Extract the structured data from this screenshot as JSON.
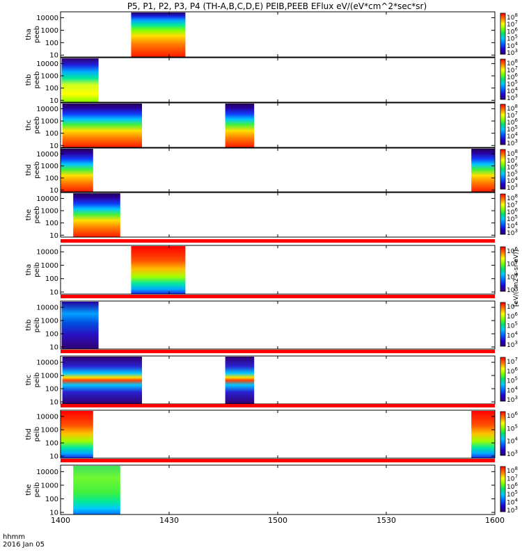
{
  "title": "P5, P1, P2, P3, P4 (TH-A,B,C,D,E) PEIB,PEEB EFlux eV/(eV*cm^2*sec*sr)",
  "time_axis": {
    "ticks": [
      "1400",
      "1430",
      "1500",
      "1530",
      "1600"
    ],
    "unit_label": "hhmm",
    "date_label": "2016 Jan 05",
    "range_minutes": [
      0,
      120
    ]
  },
  "colorbar_unit_label": "[eV/(cm2-s-sr-eV)]",
  "colors": {
    "background": "#ffffff",
    "fill_missing": "#ffffff",
    "frame": "#000000",
    "separator": "#ff0000"
  },
  "chart_data": {
    "type": "heatmap",
    "x_unit": "minutes after 14:00 UT",
    "xlim": [
      0,
      120
    ],
    "y_scale": "log",
    "ylim": [
      7,
      30000
    ],
    "y_ticks": [
      "10",
      "100",
      "1000",
      "10000"
    ],
    "panels": [
      {
        "id": "tha-peeb",
        "label_line1": "tha",
        "label_line2": "peeb",
        "colorbar_ticks": [
          "10^8",
          "10^7",
          "10^6",
          "10^5",
          "10^4",
          "10^3"
        ],
        "segments": [
          [
            19.5,
            34.5
          ]
        ],
        "pattern": "electron_hot",
        "separator_above": false
      },
      {
        "id": "thb-peeb",
        "label_line1": "thb",
        "label_line2": "peeb",
        "colorbar_ticks": [
          "10^8",
          "10^7",
          "10^6",
          "10^5",
          "10^4",
          "10^3"
        ],
        "segments": [
          [
            0.3,
            10.5
          ]
        ],
        "pattern": "electron_cool",
        "separator_above": false
      },
      {
        "id": "thc-peeb",
        "label_line1": "thc",
        "label_line2": "peeb",
        "colorbar_ticks": [
          "10^8",
          "10^7",
          "10^6",
          "10^5",
          "10^4",
          "10^3"
        ],
        "segments": [
          [
            0.5,
            22.5
          ],
          [
            45.5,
            53.5
          ]
        ],
        "pattern": "electron_mixed",
        "separator_above": false
      },
      {
        "id": "thd-peeb",
        "label_line1": "thd",
        "label_line2": "peeb",
        "colorbar_ticks": [
          "10^8",
          "10^7",
          "10^6",
          "10^5",
          "10^4",
          "10^3"
        ],
        "segments": [
          [
            0,
            9
          ],
          [
            113.5,
            120
          ]
        ],
        "pattern": "electron_mixed",
        "separator_above": false
      },
      {
        "id": "the-peeb",
        "label_line1": "the",
        "label_line2": "peeb",
        "colorbar_ticks": [
          "10^8",
          "10^7",
          "10^6",
          "10^5",
          "10^4",
          "10^3"
        ],
        "segments": [
          [
            3.5,
            16.5
          ]
        ],
        "pattern": "electron_mixed",
        "separator_above": false
      },
      {
        "id": "tha-peib",
        "label_line1": "tha",
        "label_line2": "peib",
        "colorbar_ticks": [
          "10^6",
          "10^5",
          "10^4",
          "10^3"
        ],
        "segments": [
          [
            19.5,
            34.5
          ]
        ],
        "pattern": "ion_hot",
        "separator_above": true
      },
      {
        "id": "thb-peib",
        "label_line1": "thb",
        "label_line2": "peib",
        "colorbar_ticks": [
          "10^7",
          "10^6",
          "10^5",
          "10^4",
          "10^3"
        ],
        "segments": [
          [
            0.3,
            10.5
          ]
        ],
        "pattern": "ion_dark",
        "separator_above": true
      },
      {
        "id": "thc-peib",
        "label_line1": "thc",
        "label_line2": "peib",
        "colorbar_ticks": [
          "10^7",
          "10^6",
          "10^5",
          "10^4",
          "10^3"
        ],
        "segments": [
          [
            0.5,
            22.5
          ],
          [
            45.5,
            53.5
          ]
        ],
        "pattern": "ion_band",
        "separator_above": true
      },
      {
        "id": "thd-peib",
        "label_line1": "thd",
        "label_line2": "peib",
        "colorbar_ticks": [
          "10^6",
          "10^5",
          "10^4",
          "10^3"
        ],
        "segments": [
          [
            0,
            9
          ],
          [
            113.5,
            120
          ]
        ],
        "pattern": "ion_hot",
        "separator_above": true
      },
      {
        "id": "the-peib",
        "label_line1": "the",
        "label_line2": "peib",
        "colorbar_ticks": [
          "10^8",
          "10^7",
          "10^6",
          "10^5",
          "10^4",
          "10^3"
        ],
        "segments": [
          [
            3.5,
            16.5
          ]
        ],
        "pattern": "ion_cool",
        "separator_above": true
      }
    ]
  }
}
